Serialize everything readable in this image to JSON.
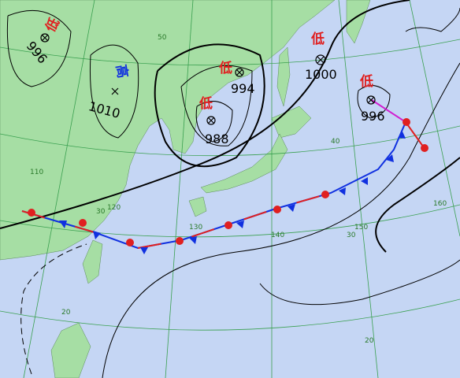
{
  "pressure_systems": [
    {
      "kind": "低",
      "value": 996
    },
    {
      "kind": "高",
      "value": 1010
    },
    {
      "kind": "低",
      "value": 994
    },
    {
      "kind": "低",
      "value": 988
    },
    {
      "kind": "低",
      "value": 1000
    },
    {
      "kind": "低",
      "value": 996
    }
  ],
  "grid_labels": {
    "lat": [
      50,
      40,
      30,
      30,
      20,
      20
    ],
    "lon": [
      110,
      120,
      130,
      140,
      150,
      160
    ]
  }
}
